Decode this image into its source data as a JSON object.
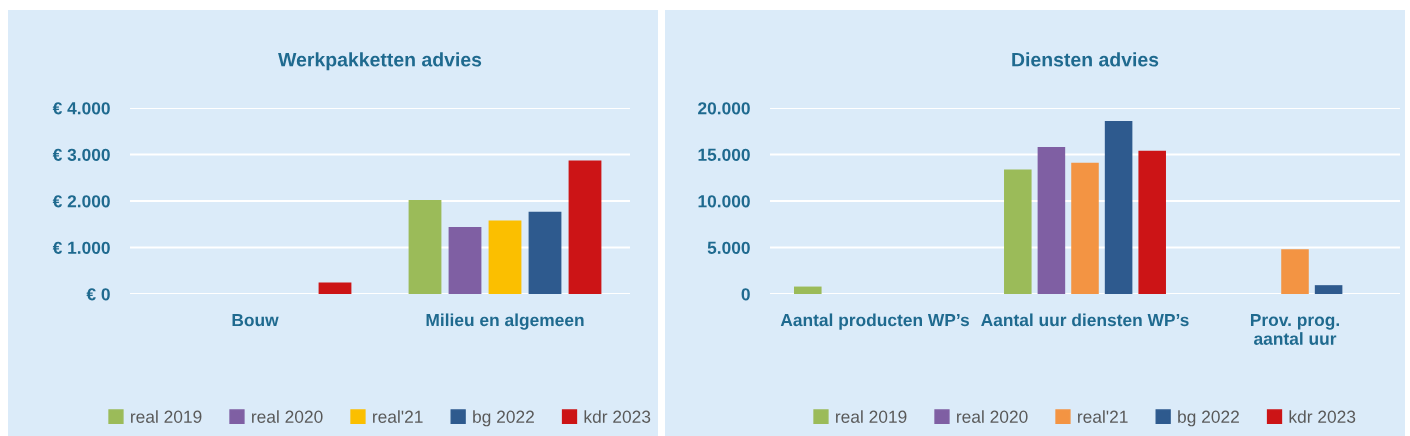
{
  "chart_data": [
    {
      "type": "bar",
      "title": "Werkpakketten advies",
      "categories": [
        "Bouw",
        "Milieu en algemeen"
      ],
      "series": [
        {
          "name": "real 2019",
          "color": "#9bbb59",
          "values": [
            null,
            2020
          ]
        },
        {
          "name": "real 2020",
          "color": "#7f5fa3",
          "values": [
            null,
            1440
          ]
        },
        {
          "name": "real'21",
          "color": "#fbbf00",
          "values": [
            null,
            1580
          ]
        },
        {
          "name": "bg 2022",
          "color": "#2e5a8e",
          "values": [
            null,
            1770
          ]
        },
        {
          "name": "kdr 2023",
          "color": "#cc1416",
          "values": [
            250,
            2870
          ]
        }
      ],
      "ylim": [
        0,
        4000
      ],
      "yticks": [
        {
          "value": 0,
          "label": "€ 0"
        },
        {
          "value": 1000,
          "label": "€ 1.000"
        },
        {
          "value": 2000,
          "label": "€ 2.000"
        },
        {
          "value": 3000,
          "label": "€ 3.000"
        },
        {
          "value": 4000,
          "label": "€ 4.000"
        }
      ],
      "grid": "y",
      "legend": "bottom"
    },
    {
      "type": "bar",
      "title": "Diensten advies",
      "categories": [
        "Aantal producten WP’s",
        "Aantal uur diensten WP’s",
        "Prov. prog.\naantal uur"
      ],
      "series": [
        {
          "name": "real 2019",
          "color": "#9bbb59",
          "values": [
            800,
            13400,
            null
          ]
        },
        {
          "name": "real 2020",
          "color": "#7f5fa3",
          "values": [
            null,
            15800,
            null
          ]
        },
        {
          "name": "real'21",
          "color": "#f39443",
          "values": [
            null,
            14100,
            4800
          ]
        },
        {
          "name": "bg 2022",
          "color": "#2e5a8e",
          "values": [
            null,
            18600,
            950
          ]
        },
        {
          "name": "kdr 2023",
          "color": "#cc1416",
          "values": [
            null,
            15400,
            null
          ]
        }
      ],
      "ylim": [
        0,
        20000
      ],
      "yticks": [
        0,
        {
          "value": 5000,
          "label": "5.000"
        },
        {
          "value": 10000,
          "label": "10.000"
        },
        {
          "value": 15000,
          "label": "15.000"
        },
        {
          "value": 20000,
          "label": "20.000"
        }
      ],
      "grid": "y",
      "legend": "bottom"
    }
  ]
}
